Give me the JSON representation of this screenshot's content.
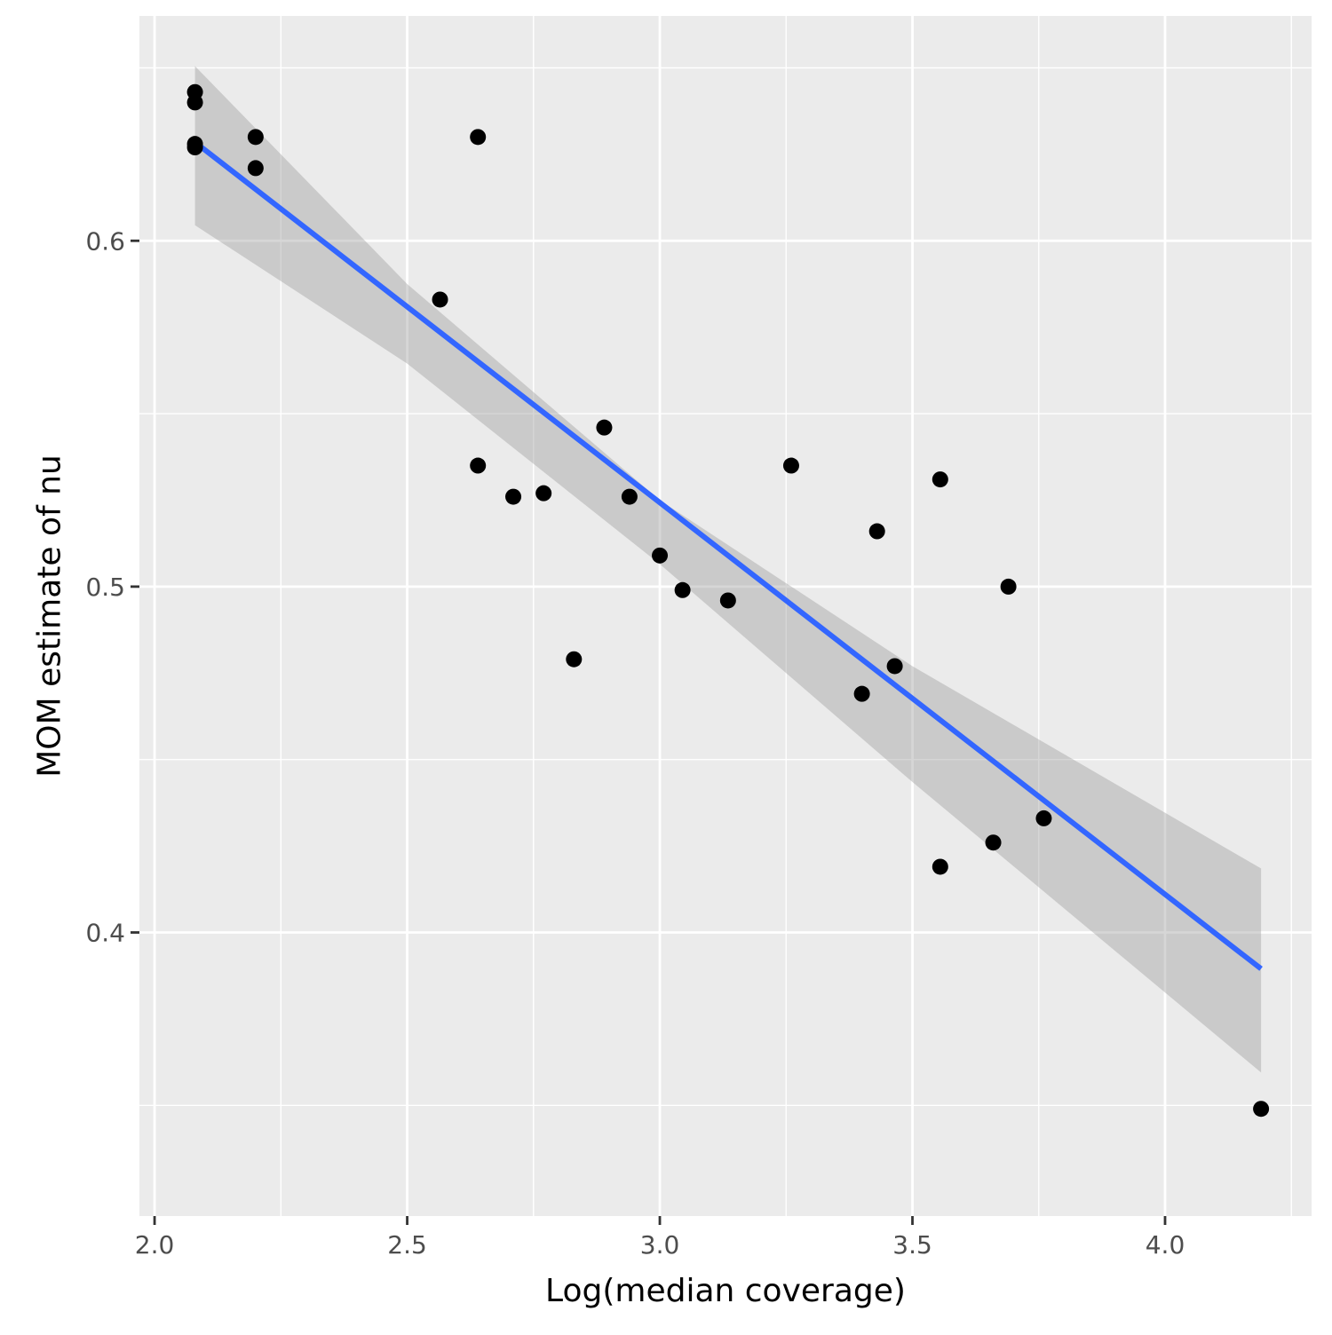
{
  "chart_data": {
    "type": "scatter",
    "xlabel": "Log(median coverage)",
    "ylabel": "MOM estimate of nu",
    "xlim": [
      1.97,
      4.29
    ],
    "ylim": [
      0.318,
      0.665
    ],
    "x_ticks": [
      2.0,
      2.5,
      3.0,
      3.5,
      4.0
    ],
    "x_tick_labels": [
      "2.0",
      "2.5",
      "3.0",
      "3.5",
      "4.0"
    ],
    "x_minor_ticks": [
      2.25,
      2.75,
      3.25,
      3.75,
      4.25
    ],
    "y_ticks": [
      0.4,
      0.5,
      0.6
    ],
    "y_tick_labels": [
      "0.4",
      "0.5",
      "0.6"
    ],
    "y_minor_ticks": [
      0.35,
      0.45,
      0.55,
      0.65
    ],
    "grid": true,
    "panel_background": "#ebebeb",
    "point_color": "#000000",
    "points": [
      {
        "x": 2.08,
        "y": 0.643
      },
      {
        "x": 2.08,
        "y": 0.64
      },
      {
        "x": 2.08,
        "y": 0.628
      },
      {
        "x": 2.08,
        "y": 0.627
      },
      {
        "x": 2.2,
        "y": 0.63
      },
      {
        "x": 2.2,
        "y": 0.621
      },
      {
        "x": 2.565,
        "y": 0.583
      },
      {
        "x": 2.64,
        "y": 0.63
      },
      {
        "x": 2.64,
        "y": 0.535
      },
      {
        "x": 2.71,
        "y": 0.526
      },
      {
        "x": 2.77,
        "y": 0.527
      },
      {
        "x": 2.83,
        "y": 0.479
      },
      {
        "x": 2.89,
        "y": 0.546
      },
      {
        "x": 2.94,
        "y": 0.526
      },
      {
        "x": 3.0,
        "y": 0.509
      },
      {
        "x": 3.045,
        "y": 0.499
      },
      {
        "x": 3.135,
        "y": 0.496
      },
      {
        "x": 3.26,
        "y": 0.535
      },
      {
        "x": 3.4,
        "y": 0.469
      },
      {
        "x": 3.43,
        "y": 0.516
      },
      {
        "x": 3.465,
        "y": 0.477
      },
      {
        "x": 3.555,
        "y": 0.531
      },
      {
        "x": 3.555,
        "y": 0.419
      },
      {
        "x": 3.66,
        "y": 0.426
      },
      {
        "x": 3.69,
        "y": 0.5
      },
      {
        "x": 3.76,
        "y": 0.433
      },
      {
        "x": 4.19,
        "y": 0.349
      }
    ],
    "trend_line": {
      "method": "linear fit",
      "color": "#3366ff",
      "x": [
        2.08,
        4.19
      ],
      "y": [
        0.6285,
        0.3895
      ]
    },
    "confidence_band": {
      "color": "#999999",
      "x": [
        2.08,
        2.5,
        3.0,
        3.5,
        4.19
      ],
      "upper": [
        0.6505,
        0.5875,
        0.525,
        0.477,
        0.4185
      ],
      "lower": [
        0.6045,
        0.5645,
        0.5065,
        0.4435,
        0.3595
      ]
    }
  }
}
